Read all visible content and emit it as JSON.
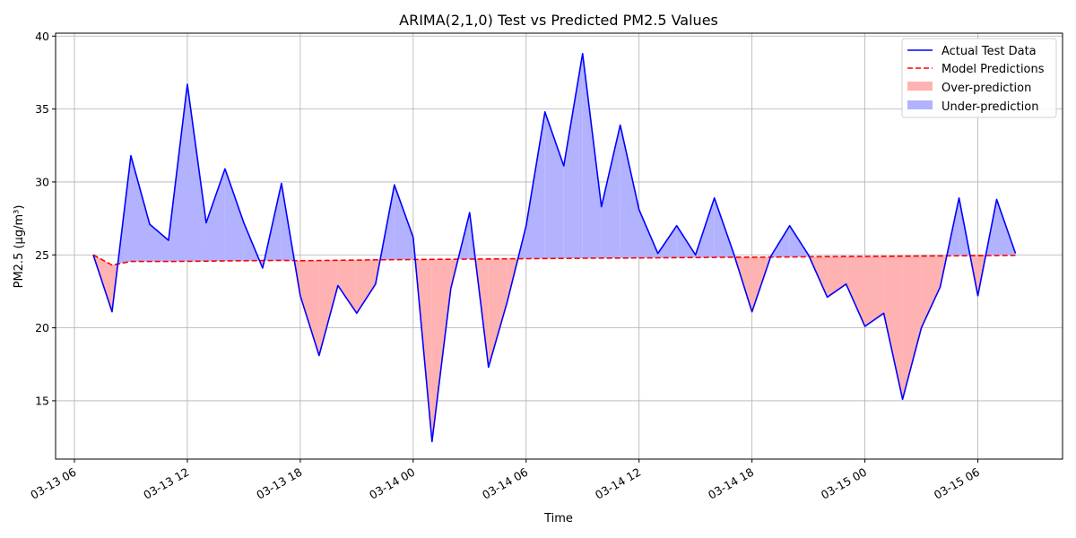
{
  "chart_data": {
    "type": "line",
    "title": "ARIMA(2,1,0) Test vs Predicted PM2.5 Values",
    "xlabel": "Time",
    "ylabel": "PM2.5 (μg/m³)",
    "xlim": [
      "2025-03-13 05:00",
      "2025-03-15 10:30"
    ],
    "ylim": [
      11,
      40.2
    ],
    "x_ticks": [
      {
        "value": "2025-03-13 06:00",
        "label": "03-13 06"
      },
      {
        "value": "2025-03-13 12:00",
        "label": "03-13 12"
      },
      {
        "value": "2025-03-13 18:00",
        "label": "03-13 18"
      },
      {
        "value": "2025-03-14 00:00",
        "label": "03-14 00"
      },
      {
        "value": "2025-03-14 06:00",
        "label": "03-14 06"
      },
      {
        "value": "2025-03-14 12:00",
        "label": "03-14 12"
      },
      {
        "value": "2025-03-14 18:00",
        "label": "03-14 18"
      },
      {
        "value": "2025-03-15 00:00",
        "label": "03-15 00"
      },
      {
        "value": "2025-03-15 06:00",
        "label": "03-15 06"
      }
    ],
    "y_ticks": [
      15,
      20,
      25,
      30,
      35,
      40
    ],
    "grid": true,
    "legend_position": "top-right",
    "x": [
      "2025-03-13 07:00",
      "2025-03-13 08:00",
      "2025-03-13 09:00",
      "2025-03-13 10:00",
      "2025-03-13 11:00",
      "2025-03-13 12:00",
      "2025-03-13 13:00",
      "2025-03-13 14:00",
      "2025-03-13 15:00",
      "2025-03-13 16:00",
      "2025-03-13 17:00",
      "2025-03-13 18:00",
      "2025-03-13 19:00",
      "2025-03-13 20:00",
      "2025-03-13 21:00",
      "2025-03-13 22:00",
      "2025-03-13 23:00",
      "2025-03-14 00:00",
      "2025-03-14 01:00",
      "2025-03-14 02:00",
      "2025-03-14 03:00",
      "2025-03-14 04:00",
      "2025-03-14 05:00",
      "2025-03-14 06:00",
      "2025-03-14 07:00",
      "2025-03-14 08:00",
      "2025-03-14 09:00",
      "2025-03-14 10:00",
      "2025-03-14 11:00",
      "2025-03-14 12:00",
      "2025-03-14 13:00",
      "2025-03-14 14:00",
      "2025-03-14 15:00",
      "2025-03-14 16:00",
      "2025-03-14 17:00",
      "2025-03-14 18:00",
      "2025-03-14 19:00",
      "2025-03-14 20:00",
      "2025-03-14 21:00",
      "2025-03-14 22:00",
      "2025-03-14 23:00",
      "2025-03-15 00:00",
      "2025-03-15 01:00",
      "2025-03-15 02:00",
      "2025-03-15 03:00",
      "2025-03-15 04:00",
      "2025-03-15 05:00",
      "2025-03-15 06:00",
      "2025-03-15 07:00",
      "2025-03-15 08:00"
    ],
    "series": [
      {
        "name": "Actual Test Data",
        "color": "#0000ff",
        "style": "solid",
        "values": [
          25.0,
          21.1,
          31.8,
          27.1,
          26.0,
          36.7,
          27.2,
          30.9,
          27.2,
          24.1,
          29.9,
          22.2,
          18.1,
          22.9,
          21.0,
          23.0,
          29.8,
          26.2,
          12.2,
          22.7,
          27.9,
          17.3,
          21.8,
          27.0,
          34.8,
          31.1,
          38.8,
          28.3,
          33.9,
          28.1,
          25.1,
          27.0,
          25.0,
          28.9,
          25.2,
          21.1,
          24.9,
          27.0,
          25.0,
          22.1,
          23.0,
          20.1,
          21.0,
          15.1,
          20.0,
          22.8,
          28.9,
          22.2,
          28.8,
          25.1
        ]
      },
      {
        "name": "Model Predictions",
        "color": "#ff0000",
        "style": "dashed",
        "values": [
          25.0,
          24.3,
          24.55,
          24.55,
          24.55,
          24.56,
          24.57,
          24.59,
          24.6,
          24.61,
          24.62,
          24.6,
          24.61,
          24.63,
          24.64,
          24.66,
          24.67,
          24.68,
          24.69,
          24.7,
          24.71,
          24.72,
          24.73,
          24.74,
          24.75,
          24.76,
          24.77,
          24.78,
          24.78,
          24.79,
          24.8,
          24.81,
          24.82,
          24.83,
          24.84,
          24.84,
          24.85,
          24.86,
          24.87,
          24.88,
          24.89,
          24.89,
          24.9,
          24.91,
          24.92,
          24.93,
          24.94,
          24.95,
          24.96,
          24.97
        ]
      }
    ],
    "fills": [
      {
        "name": "Over-prediction",
        "color": "#ffb2b2"
      },
      {
        "name": "Under-prediction",
        "color": "#b2b2ff"
      }
    ]
  }
}
